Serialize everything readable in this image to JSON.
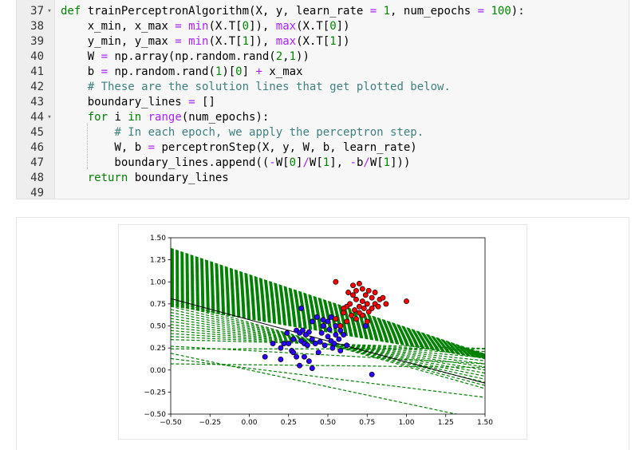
{
  "code": {
    "lines": [
      {
        "n": "37",
        "fold": "▾",
        "html": "<span class=\"kw\">def</span> trainPerceptronAlgorithm(X, y, learn_rate <span class=\"op\">=</span> <span class=\"num\">1</span>, num_epochs <span class=\"op\">=</span> <span class=\"num\">100</span>):"
      },
      {
        "n": "38",
        "fold": "",
        "html": "    x_min, x_max <span class=\"op\">=</span> <span class=\"kw2\">min</span>(X.T[<span class=\"num\">0</span>]), <span class=\"kw2\">max</span>(X.T[<span class=\"num\">0</span>])"
      },
      {
        "n": "39",
        "fold": "",
        "html": "    y_min, y_max <span class=\"op\">=</span> <span class=\"kw2\">min</span>(X.T[<span class=\"num\">1</span>]), <span class=\"kw2\">max</span>(X.T[<span class=\"num\">1</span>])"
      },
      {
        "n": "40",
        "fold": "",
        "html": "    W <span class=\"op\">=</span> np.array(np.random.rand(<span class=\"num\">2</span>,<span class=\"num\">1</span>))"
      },
      {
        "n": "41",
        "fold": "",
        "html": "    b <span class=\"op\">=</span> np.random.rand(<span class=\"num\">1</span>)[<span class=\"num\">0</span>] <span class=\"op\">+</span> x_max"
      },
      {
        "n": "42",
        "fold": "",
        "html": "    <span class=\"cm\"># These are the solution lines that get plotted below.</span>"
      },
      {
        "n": "43",
        "fold": "",
        "html": "    boundary_lines <span class=\"op\">=</span> []"
      },
      {
        "n": "44",
        "fold": "▾",
        "html": "    <span class=\"kw\">for</span> i <span class=\"kw\">in</span> <span class=\"kw2\">range</span>(num_epochs):"
      },
      {
        "n": "45",
        "fold": "",
        "html": "        <span class=\"cm\"># In each epoch, we apply the perceptron step.</span>"
      },
      {
        "n": "46",
        "fold": "",
        "html": "        W, b <span class=\"op\">=</span> perceptronStep(X, y, W, b, learn_rate)"
      },
      {
        "n": "47",
        "fold": "",
        "html": "        boundary_lines.append((<span class=\"op\">-</span>W[<span class=\"num\">0</span>]<span class=\"op\">/</span>W[<span class=\"num\">1</span>], <span class=\"op\">-</span>b<span class=\"op\">/</span>W[<span class=\"num\">1</span>]))"
      },
      {
        "n": "48",
        "fold": "",
        "html": "    <span class=\"kw\">return</span> boundary_lines"
      },
      {
        "n": "49",
        "fold": "",
        "html": ""
      }
    ]
  },
  "chart_data": {
    "type": "scatter",
    "title": "",
    "xlabel": "",
    "ylabel": "",
    "xlim": [
      -0.5,
      1.5
    ],
    "ylim": [
      -0.5,
      1.5
    ],
    "x_ticks": [
      "−0.50",
      "−0.25",
      "0.00",
      "0.25",
      "0.50",
      "0.75",
      "1.00",
      "1.25",
      "1.50"
    ],
    "y_ticks": [
      "−0.50",
      "−0.25",
      "0.00",
      "0.25",
      "0.50",
      "0.75",
      "1.00",
      "1.25",
      "1.50"
    ],
    "x_tick_values": [
      -0.5,
      -0.25,
      0,
      0.25,
      0.5,
      0.75,
      1.0,
      1.25,
      1.5
    ],
    "y_tick_values": [
      -0.5,
      -0.25,
      0,
      0.25,
      0.5,
      0.75,
      1.0,
      1.25,
      1.5
    ],
    "grid": false,
    "colors": {
      "blue_points": "#2a00ff",
      "red_points": "#ff0000",
      "boundary_lines": "#008000",
      "final_line": "#000000"
    },
    "series": [
      {
        "marker": "blue",
        "points": [
          [
            0.33,
            0.7
          ],
          [
            0.4,
            0.55
          ],
          [
            0.43,
            0.6
          ],
          [
            0.47,
            0.57
          ],
          [
            0.5,
            0.55
          ],
          [
            0.52,
            0.6
          ],
          [
            0.55,
            0.5
          ],
          [
            0.15,
            0.3
          ],
          [
            0.2,
            0.25
          ],
          [
            0.22,
            0.3
          ],
          [
            0.24,
            0.42
          ],
          [
            0.25,
            0.3
          ],
          [
            0.27,
            0.22
          ],
          [
            0.28,
            0.35
          ],
          [
            0.3,
            0.45
          ],
          [
            0.32,
            0.42
          ],
          [
            0.33,
            0.33
          ],
          [
            0.34,
            0.45
          ],
          [
            0.35,
            0.3
          ],
          [
            0.36,
            0.4
          ],
          [
            0.37,
            0.28
          ],
          [
            0.38,
            0.43
          ],
          [
            0.4,
            0.35
          ],
          [
            0.42,
            0.3
          ],
          [
            0.44,
            0.2
          ],
          [
            0.45,
            0.32
          ],
          [
            0.46,
            0.42
          ],
          [
            0.48,
            0.28
          ],
          [
            0.5,
            0.38
          ],
          [
            0.52,
            0.33
          ],
          [
            0.53,
            0.25
          ],
          [
            0.55,
            0.4
          ],
          [
            0.54,
            0.3
          ],
          [
            0.57,
            0.35
          ],
          [
            0.58,
            0.45
          ],
          [
            0.6,
            0.4
          ],
          [
            0.62,
            0.28
          ],
          [
            0.2,
            0.12
          ],
          [
            0.3,
            0.15
          ],
          [
            0.32,
            0.05
          ],
          [
            0.35,
            0.15
          ],
          [
            0.38,
            0.1
          ],
          [
            0.4,
            0.02
          ],
          [
            0.58,
            0.22
          ],
          [
            0.1,
            0.15
          ],
          [
            0.28,
            0.2
          ],
          [
            0.47,
            0.5
          ],
          [
            0.51,
            0.46
          ],
          [
            0.78,
            -0.05
          ],
          [
            0.74,
            0.5
          ]
        ]
      },
      {
        "marker": "red",
        "points": [
          [
            0.55,
            1.0
          ],
          [
            0.66,
            0.96
          ],
          [
            0.68,
            0.9
          ],
          [
            0.7,
            0.98
          ],
          [
            0.72,
            0.92
          ],
          [
            0.74,
            0.85
          ],
          [
            0.76,
            0.9
          ],
          [
            0.78,
            0.82
          ],
          [
            0.8,
            0.88
          ],
          [
            0.83,
            0.8
          ],
          [
            0.87,
            0.75
          ],
          [
            1.0,
            0.78
          ],
          [
            0.72,
            0.78
          ],
          [
            0.75,
            0.75
          ],
          [
            0.73,
            0.7
          ],
          [
            0.7,
            0.72
          ],
          [
            0.68,
            0.8
          ],
          [
            0.64,
            0.75
          ],
          [
            0.62,
            0.72
          ],
          [
            0.6,
            0.7
          ],
          [
            0.65,
            0.62
          ],
          [
            0.68,
            0.58
          ],
          [
            0.72,
            0.62
          ],
          [
            0.75,
            0.55
          ],
          [
            0.62,
            0.55
          ],
          [
            0.58,
            0.5
          ],
          [
            0.6,
            0.65
          ],
          [
            0.78,
            0.7
          ],
          [
            0.8,
            0.75
          ],
          [
            0.82,
            0.72
          ],
          [
            0.7,
            0.65
          ],
          [
            0.55,
            0.58
          ],
          [
            0.66,
            0.85
          ],
          [
            0.63,
            0.88
          ],
          [
            0.85,
            0.82
          ],
          [
            0.76,
            0.66
          ],
          [
            0.67,
            0.68
          ]
        ]
      }
    ],
    "final_line": {
      "m": -0.48,
      "c": 0.57
    }
  }
}
